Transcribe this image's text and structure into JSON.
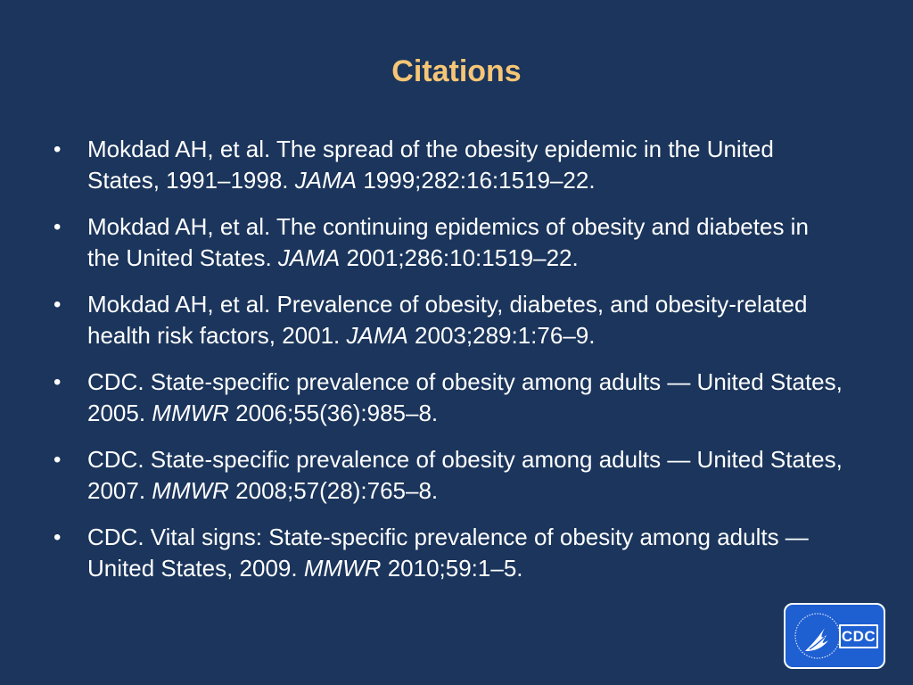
{
  "title": "Citations",
  "citations": [
    {
      "text_before": "Mokdad AH, et al. The spread of the obesity epidemic in the United States, 1991–1998. ",
      "journal": "JAMA",
      "text_after": " 1999;282:16:1519–22."
    },
    {
      "text_before": "Mokdad AH, et al.  The continuing epidemics of obesity and diabetes in the United States. ",
      "journal": "JAMA",
      "text_after": " 2001;286:10:1519–22."
    },
    {
      "text_before": "Mokdad AH, et al.  Prevalence of obesity, diabetes, and obesity-related health risk factors, 2001. ",
      "journal": "JAMA",
      "text_after": " 2003;289:1:76–9."
    },
    {
      "text_before": "CDC.  State-specific prevalence of obesity among adults — United States, 2005. ",
      "journal": "MMWR",
      "text_after": " 2006;55(36):985–8."
    },
    {
      "text_before": "CDC.  State-specific prevalence of obesity among adults — United States, 2007. ",
      "journal": "MMWR",
      "text_after": " 2008;57(28):765–8."
    },
    {
      "text_before": "CDC.  Vital signs: State-specific prevalence of obesity among adults — United States, 2009. ",
      "journal": "MMWR",
      "text_after": " 2010;59:1–5."
    }
  ],
  "logo": {
    "text": "CDC",
    "icon": "hhs-eagle-icon"
  },
  "colors": {
    "background": "#1b355c",
    "title": "#f6c676",
    "text": "#ffffff",
    "logo_fill": "#1e5fd2"
  }
}
